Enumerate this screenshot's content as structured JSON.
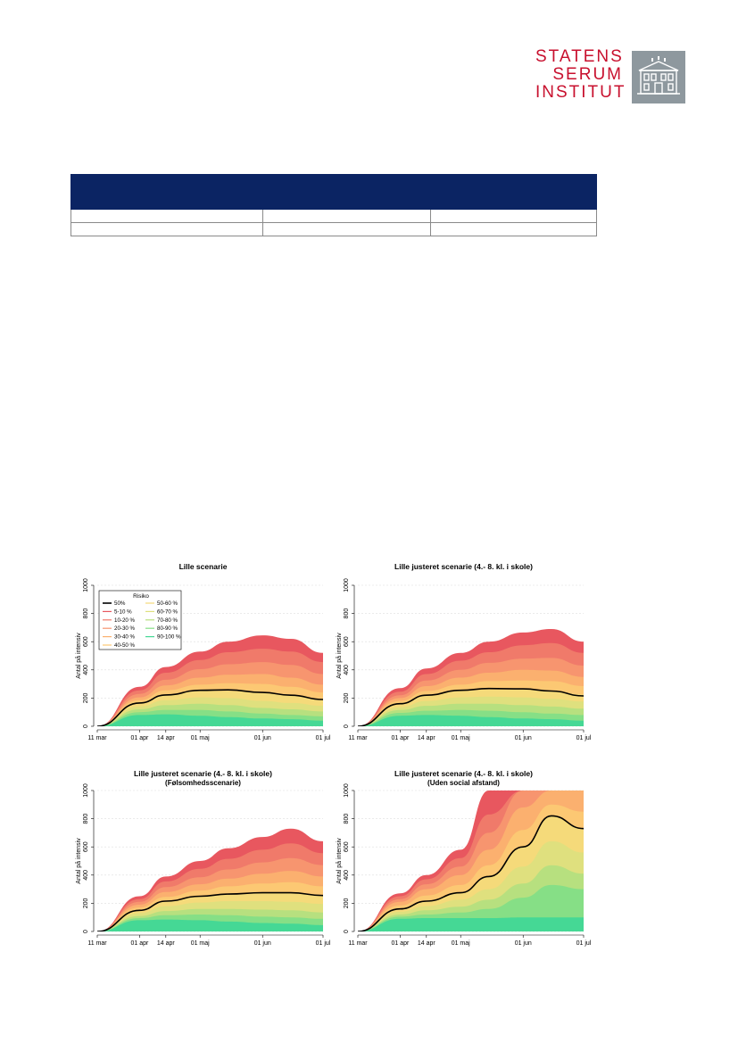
{
  "logo": {
    "lines": [
      "STATENS",
      "SERUM",
      "INSTITUT"
    ],
    "brand_color": "#c8102e",
    "box_color": "#8e989e",
    "icon": "building-icon"
  },
  "table": {
    "header_color": "#0b2463",
    "headers": [
      "",
      "",
      ""
    ],
    "rows": [
      [
        "",
        "",
        ""
      ],
      [
        "",
        "",
        ""
      ]
    ]
  },
  "chart_data": [
    {
      "type": "area",
      "title": "Lille scenarie",
      "subtitle": "",
      "ylabel": "Antal på intensiv",
      "xlabel": "",
      "x_ticks": [
        "11 mar",
        "01 apr",
        "14 apr",
        "01 maj",
        "01 jun",
        "01 jul"
      ],
      "y_ticks": [
        "0",
        "200",
        "400",
        "600",
        "800",
        "1000"
      ],
      "ylim": [
        0,
        1000
      ],
      "grid": true,
      "legend": {
        "title": "Risiko",
        "placement": "top-left",
        "entries": [
          {
            "label": "50%",
            "color": "#000000",
            "kind": "line"
          },
          {
            "label": "5-10 %",
            "color": "#e8575f",
            "kind": "band"
          },
          {
            "label": "10-20 %",
            "color": "#f07a6a",
            "kind": "band"
          },
          {
            "label": "20-30 %",
            "color": "#f7956f",
            "kind": "band"
          },
          {
            "label": "30-40 %",
            "color": "#fbb06f",
            "kind": "band"
          },
          {
            "label": "40-50 %",
            "color": "#fcc873",
            "kind": "band"
          },
          {
            "label": "50-60 %",
            "color": "#f5da7a",
            "kind": "band"
          },
          {
            "label": "60-70 %",
            "color": "#dfe07e",
            "kind": "band"
          },
          {
            "label": "70-80 %",
            "color": "#b7e07f",
            "kind": "band"
          },
          {
            "label": "80-90 %",
            "color": "#86df86",
            "kind": "band"
          },
          {
            "label": "90-100 %",
            "color": "#45d895",
            "kind": "band"
          }
        ]
      },
      "x": [
        "11 mar",
        "01 apr",
        "14 apr",
        "01 maj",
        "15 maj",
        "01 jun",
        "15 jun",
        "01 jul"
      ],
      "series": [
        {
          "name": "50%",
          "values": [
            0,
            165,
            222,
            255,
            258,
            240,
            220,
            190
          ]
        },
        {
          "name": "5-10 %",
          "values": [
            0,
            280,
            420,
            530,
            600,
            645,
            620,
            520
          ]
        },
        {
          "name": "10-20 %",
          "values": [
            0,
            255,
            380,
            470,
            525,
            550,
            530,
            455
          ]
        },
        {
          "name": "20-30 %",
          "values": [
            0,
            230,
            330,
            405,
            440,
            455,
            435,
            370
          ]
        },
        {
          "name": "30-40 %",
          "values": [
            0,
            205,
            290,
            345,
            365,
            370,
            345,
            295
          ]
        },
        {
          "name": "40-50 %",
          "values": [
            0,
            185,
            255,
            295,
            305,
            300,
            280,
            240
          ]
        },
        {
          "name": "50-60 %",
          "values": [
            0,
            160,
            220,
            250,
            250,
            235,
            220,
            190
          ]
        },
        {
          "name": "60-70 %",
          "values": [
            0,
            140,
            185,
            205,
            200,
            180,
            165,
            145
          ]
        },
        {
          "name": "70-80 %",
          "values": [
            0,
            120,
            150,
            160,
            150,
            130,
            120,
            105
          ]
        },
        {
          "name": "80-90 %",
          "values": [
            0,
            100,
            115,
            115,
            105,
            90,
            80,
            70
          ]
        },
        {
          "name": "90-100 %",
          "values": [
            0,
            80,
            85,
            75,
            65,
            55,
            50,
            40
          ]
        }
      ]
    },
    {
      "type": "area",
      "title": "Lille justeret scenarie (4.- 8. kl. i skole)",
      "subtitle": "",
      "ylabel": "Antal på intensiv",
      "xlabel": "",
      "x_ticks": [
        "11 mar",
        "01 apr",
        "14 apr",
        "01 maj",
        "01 jun",
        "01 jul"
      ],
      "y_ticks": [
        "0",
        "200",
        "400",
        "600",
        "800",
        "1000"
      ],
      "ylim": [
        0,
        1000
      ],
      "grid": true,
      "x": [
        "11 mar",
        "01 apr",
        "14 apr",
        "01 maj",
        "15 maj",
        "01 jun",
        "15 jun",
        "01 jul"
      ],
      "series": [
        {
          "name": "50%",
          "values": [
            0,
            160,
            220,
            255,
            268,
            265,
            250,
            215
          ]
        },
        {
          "name": "5-10 %",
          "values": [
            0,
            270,
            410,
            520,
            600,
            665,
            690,
            600
          ]
        },
        {
          "name": "10-20 %",
          "values": [
            0,
            245,
            370,
            465,
            525,
            575,
            590,
            520
          ]
        },
        {
          "name": "20-30 %",
          "values": [
            0,
            220,
            325,
            400,
            450,
            480,
            485,
            430
          ]
        },
        {
          "name": "30-40 %",
          "values": [
            0,
            200,
            285,
            345,
            380,
            400,
            395,
            350
          ]
        },
        {
          "name": "40-50 %",
          "values": [
            0,
            180,
            250,
            295,
            320,
            325,
            320,
            285
          ]
        },
        {
          "name": "50-60 %",
          "values": [
            0,
            155,
            215,
            250,
            260,
            260,
            250,
            225
          ]
        },
        {
          "name": "60-70 %",
          "values": [
            0,
            135,
            180,
            205,
            210,
            205,
            195,
            175
          ]
        },
        {
          "name": "70-80 %",
          "values": [
            0,
            115,
            145,
            160,
            160,
            150,
            140,
            125
          ]
        },
        {
          "name": "80-90 %",
          "values": [
            0,
            95,
            110,
            115,
            110,
            100,
            90,
            80
          ]
        },
        {
          "name": "90-100 %",
          "values": [
            0,
            75,
            80,
            75,
            65,
            55,
            50,
            40
          ]
        }
      ]
    },
    {
      "type": "area",
      "title": "Lille justeret scenarie (4.- 8. kl. i skole)",
      "subtitle": "(Følsomhedsscenarie)",
      "ylabel": "Antal på intensiv",
      "xlabel": "",
      "x_ticks": [
        "11 mar",
        "01 apr",
        "14 apr",
        "01 maj",
        "01 jun",
        "01 jul"
      ],
      "y_ticks": [
        "0",
        "200",
        "400",
        "600",
        "800",
        "1000"
      ],
      "ylim": [
        0,
        1000
      ],
      "grid": true,
      "x": [
        "11 mar",
        "01 apr",
        "14 apr",
        "01 maj",
        "15 maj",
        "01 jun",
        "15 jun",
        "01 jul"
      ],
      "series": [
        {
          "name": "50%",
          "values": [
            0,
            150,
            215,
            250,
            265,
            275,
            275,
            255
          ]
        },
        {
          "name": "5-10 %",
          "values": [
            0,
            250,
            390,
            500,
            590,
            670,
            730,
            640
          ]
        },
        {
          "name": "10-20 %",
          "values": [
            0,
            230,
            355,
            445,
            515,
            580,
            625,
            555
          ]
        },
        {
          "name": "20-30 %",
          "values": [
            0,
            210,
            315,
            385,
            440,
            490,
            520,
            470
          ]
        },
        {
          "name": "30-40 %",
          "values": [
            0,
            190,
            280,
            335,
            375,
            410,
            430,
            390
          ]
        },
        {
          "name": "40-50 %",
          "values": [
            0,
            170,
            245,
            290,
            320,
            340,
            350,
            320
          ]
        },
        {
          "name": "50-60 %",
          "values": [
            0,
            150,
            215,
            250,
            265,
            275,
            275,
            255
          ]
        },
        {
          "name": "60-70 %",
          "values": [
            0,
            130,
            180,
            205,
            215,
            215,
            210,
            195
          ]
        },
        {
          "name": "70-80 %",
          "values": [
            0,
            110,
            145,
            160,
            160,
            155,
            150,
            135
          ]
        },
        {
          "name": "80-90 %",
          "values": [
            0,
            95,
            115,
            120,
            115,
            105,
            100,
            90
          ]
        },
        {
          "name": "90-100 %",
          "values": [
            0,
            80,
            85,
            80,
            70,
            60,
            55,
            45
          ]
        }
      ]
    },
    {
      "type": "area",
      "title": "Lille justeret scenarie (4.- 8. kl. i skole)",
      "subtitle": "(Uden social afstand)",
      "ylabel": "Antal på intensiv",
      "xlabel": "",
      "x_ticks": [
        "11 mar",
        "01 apr",
        "14 apr",
        "01 maj",
        "01 jun",
        "01 jul"
      ],
      "y_ticks": [
        "0",
        "200",
        "400",
        "600",
        "800",
        "1000"
      ],
      "ylim": [
        0,
        1000
      ],
      "grid": true,
      "x": [
        "11 mar",
        "01 apr",
        "14 apr",
        "01 maj",
        "15 maj",
        "01 jun",
        "15 jun",
        "01 jul"
      ],
      "series": [
        {
          "name": "50%",
          "values": [
            0,
            160,
            215,
            275,
            390,
            600,
            820,
            730
          ]
        },
        {
          "name": "5-10 %",
          "values": [
            0,
            270,
            400,
            580,
            1000,
            1000,
            1000,
            1000
          ]
        },
        {
          "name": "10-20 %",
          "values": [
            0,
            250,
            370,
            520,
            830,
            1000,
            1000,
            1000
          ]
        },
        {
          "name": "20-30 %",
          "values": [
            0,
            230,
            335,
            460,
            700,
            1000,
            1000,
            1000
          ]
        },
        {
          "name": "30-40 %",
          "values": [
            0,
            210,
            300,
            400,
            580,
            880,
            1000,
            1000
          ]
        },
        {
          "name": "40-50 %",
          "values": [
            0,
            185,
            255,
            330,
            470,
            720,
            900,
            850
          ]
        },
        {
          "name": "50-60 %",
          "values": [
            0,
            160,
            215,
            275,
            390,
            600,
            820,
            730
          ]
        },
        {
          "name": "60-70 %",
          "values": [
            0,
            140,
            180,
            225,
            300,
            460,
            640,
            560
          ]
        },
        {
          "name": "70-80 %",
          "values": [
            0,
            120,
            150,
            175,
            225,
            340,
            470,
            410
          ]
        },
        {
          "name": "80-90 %",
          "values": [
            0,
            105,
            120,
            135,
            160,
            240,
            330,
            300
          ]
        },
        {
          "name": "90-100 %",
          "values": [
            0,
            90,
            95,
            95,
            95,
            100,
            100,
            100
          ]
        }
      ]
    }
  ]
}
